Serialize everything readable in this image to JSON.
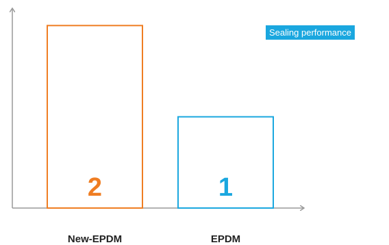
{
  "chart_data": {
    "type": "bar",
    "title": "",
    "xlabel": "",
    "ylabel": "",
    "categories": [
      "New-EPDM",
      "EPDM"
    ],
    "values": [
      2,
      1
    ],
    "ylim": [
      0,
      2.1
    ],
    "grid": false,
    "bar_style": "outline",
    "series": [
      {
        "name": "Sealing performance",
        "values": [
          2,
          1
        ]
      }
    ],
    "legend": {
      "label": "Sealing performance",
      "placement": "top-right",
      "color": "#1aa7df"
    },
    "colors": [
      "#ef7d22",
      "#1aa7df"
    ],
    "axis_color": "#999999"
  }
}
